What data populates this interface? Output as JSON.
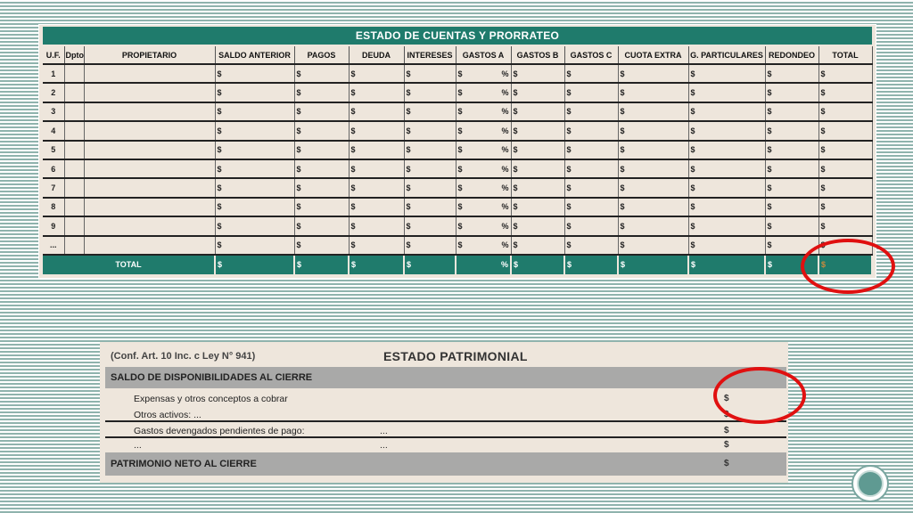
{
  "accounts": {
    "title": "ESTADO DE CUENTAS Y PRORRATEO",
    "columns": [
      "U.F.",
      "Dpto",
      "PROPIETARIO",
      "SALDO ANTERIOR",
      "PAGOS",
      "DEUDA",
      "INTERESES",
      "GASTOS A",
      "GASTOS B",
      "GASTOS C",
      "CUOTA EXTRA",
      "G. PARTICULARES",
      "REDONDEO",
      "TOTAL"
    ],
    "rows": [
      "1",
      "2",
      "3",
      "4",
      "5",
      "6",
      "7",
      "8",
      "9",
      "..."
    ],
    "currency": "$",
    "percent": "%",
    "total_label": "TOTAL"
  },
  "patrimonial": {
    "legal_note": "(Conf. Art. 10 Inc. c Ley N° 941)",
    "title": "ESTADO PATRIMONIAL",
    "saldo_label": "SALDO DE DISPONIBILIDADES AL CIERRE",
    "items": [
      {
        "label": "Expensas y otros conceptos a cobrar",
        "dots": "",
        "value": "$"
      },
      {
        "label": "Otros activos:    ...",
        "dots": "",
        "value": "$"
      },
      {
        "label": "Gastos devengados pendientes de pago:",
        "dots": "...",
        "value": "$"
      },
      {
        "label": "...",
        "dots": "...",
        "value": "$"
      }
    ],
    "patrimonio_label": "PATRIMONIO NETO AL CIERRE",
    "currency": "$"
  },
  "colors": {
    "header_green": "#1f7b6c",
    "sheet_beige": "#eee6dc",
    "highlight_red": "#e01010"
  }
}
